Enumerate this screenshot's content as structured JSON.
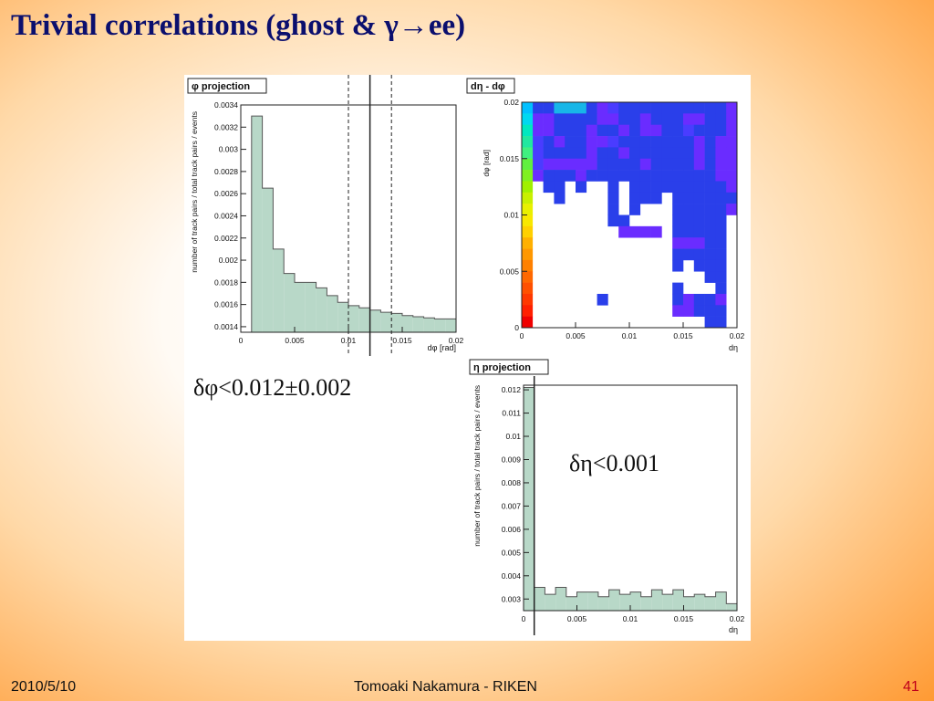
{
  "slide": {
    "title": "Trivial correlations (ghost & γ→ee)",
    "footer_date": "2010/5/10",
    "footer_author": "Tomoaki Nakamura - RIKEN",
    "page_number": "41"
  },
  "annotations": {
    "phi_cut": "δφ<0.012±0.002",
    "eta_cut": "δη<0.001"
  },
  "chart_data": [
    {
      "type": "bar",
      "title": "φ projection",
      "xlabel": "dφ [rad]",
      "ylabel": "number of track pairs / total track pairs / events",
      "xlim": [
        0,
        0.02
      ],
      "ylim": [
        0.00135,
        0.0034
      ],
      "xticks": [
        0,
        0.005,
        0.01,
        0.015,
        0.02
      ],
      "xtick_labels": [
        "0",
        "0.005",
        "0.01",
        "0.015",
        "0.02"
      ],
      "yticks": [
        0.0014,
        0.0016,
        0.0018,
        0.002,
        0.0022,
        0.0024,
        0.0026,
        0.0028,
        0.003,
        0.0032,
        0.0034
      ],
      "ytick_labels": [
        "0.0014",
        "0.0016",
        "0.0018",
        "0.002",
        "0.0022",
        "0.0024",
        "0.0026",
        "0.0028",
        "0.003",
        "0.0032",
        "0.0034"
      ],
      "bin_width": 0.001,
      "bin_edges_start": 0.001,
      "values": [
        0.0033,
        0.00265,
        0.0021,
        0.00188,
        0.0018,
        0.0018,
        0.00175,
        0.00168,
        0.00162,
        0.00159,
        0.00157,
        0.00155,
        0.00153,
        0.00152,
        0.0015,
        0.00149,
        0.00148,
        0.00147,
        0.00147
      ],
      "cut_line": 0.012,
      "cut_band": [
        0.01,
        0.014
      ],
      "fill_color": "#b8d8c8",
      "grid": false
    },
    {
      "type": "heatmap",
      "title": "dη - dφ",
      "xlabel": "dη",
      "ylabel": "dφ [rad]",
      "xlim": [
        0,
        0.02
      ],
      "ylim": [
        0,
        0.02
      ],
      "xticks": [
        0,
        0.005,
        0.01,
        0.015,
        0.02
      ],
      "xtick_labels": [
        "0",
        "0.005",
        "0.01",
        "0.015",
        "0.02"
      ],
      "yticks": [
        0,
        0.005,
        0.01,
        0.015,
        0.02
      ],
      "ytick_labels": [
        "0",
        "0.005",
        "0.01",
        "0.015",
        "0.02"
      ],
      "bins": [
        20,
        20
      ],
      "rows_top_to_bottom": [
        "3344432133333333332",
        "2233332233233322332",
        "2233323323223313332",
        "1323322133333332322",
        "1333323323333332322",
        "1222223333233332322",
        "2333233333333333322",
        "0330300303333333332",
        "0030000303330333333",
        "0000000303000333332",
        "0000000330000333330",
        "0000000022220333330",
        "0000000000000222330",
        "0000000000000333330",
        "0000000000000303330",
        "0000000000000000330",
        "0000000000000300030",
        "0000003000000323320",
        "0000000000000223330",
        "0000000000000000330"
      ],
      "level_colors": [
        "#ffffff",
        "#4a3cff",
        "#6a2cff",
        "#2a3fea",
        "#18b6e8"
      ],
      "first_column_colors_top_to_bottom": [
        "#00c0ff",
        "#00d8f0",
        "#00e8c0",
        "#20e8a0",
        "#40f080",
        "#60f040",
        "#80f020",
        "#a0f000",
        "#c8f000",
        "#e8f000",
        "#f8e800",
        "#ffd000",
        "#ffb000",
        "#ff9800",
        "#ff8000",
        "#ff6800",
        "#ff5000",
        "#ff3800",
        "#ff2000",
        "#f00000"
      ],
      "grid": false
    },
    {
      "type": "bar",
      "title": "η projection",
      "xlabel": "dη",
      "ylabel": "number of track pairs / total track pairs / events",
      "xlim": [
        0,
        0.02
      ],
      "ylim": [
        0.0025,
        0.0122
      ],
      "xticks": [
        0,
        0.005,
        0.01,
        0.015,
        0.02
      ],
      "xtick_labels": [
        "0",
        "0.005",
        "0.01",
        "0.015",
        "0.02"
      ],
      "yticks": [
        0.003,
        0.004,
        0.005,
        0.006,
        0.007,
        0.008,
        0.009,
        0.01,
        0.011,
        0.012
      ],
      "ytick_labels": [
        "0.003",
        "0.004",
        "0.005",
        "0.006",
        "0.007",
        "0.008",
        "0.009",
        "0.01",
        "0.011",
        "0.012"
      ],
      "bin_width": 0.001,
      "bin_edges_start": 0,
      "values": [
        0.0121,
        0.0035,
        0.0032,
        0.0035,
        0.0031,
        0.0033,
        0.0033,
        0.0031,
        0.0034,
        0.0032,
        0.0033,
        0.0031,
        0.0034,
        0.0032,
        0.0034,
        0.0031,
        0.0032,
        0.0031,
        0.0033,
        0.0028
      ],
      "cut_line": 0.001,
      "fill_color": "#b8d8c8",
      "grid": false
    }
  ]
}
